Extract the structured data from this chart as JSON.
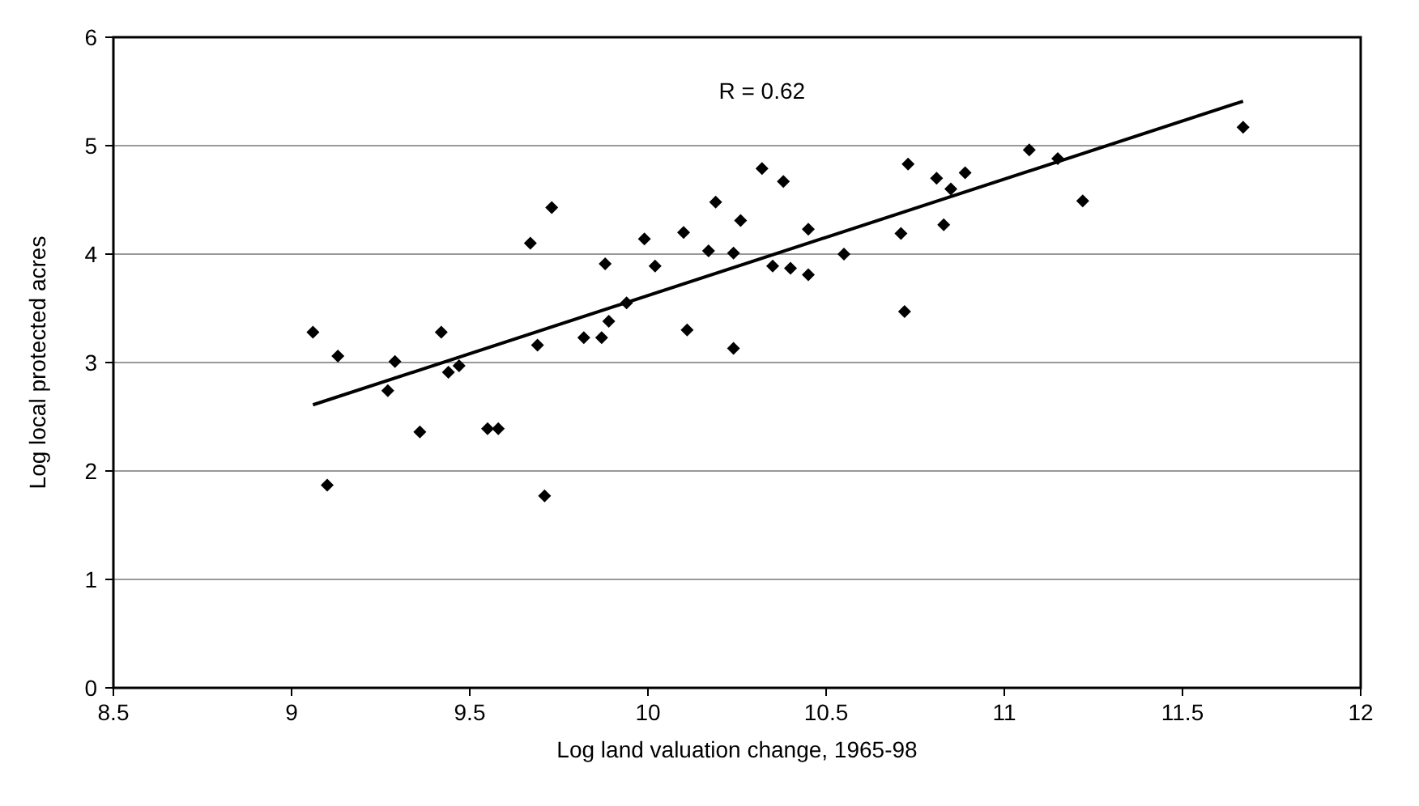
{
  "chart_data": {
    "type": "scatter",
    "xlabel": "Log land valuation change, 1965-98",
    "ylabel": "Log local protected acres",
    "xlim": [
      8.5,
      12
    ],
    "xticks": [
      8.5,
      9,
      9.5,
      10,
      10.5,
      11,
      11.5,
      12
    ],
    "ylim": [
      0,
      6
    ],
    "yticks": [
      0,
      1,
      2,
      3,
      4,
      5,
      6
    ],
    "grid": "y",
    "marker": "diamond",
    "annotations": [
      "R = 0.62"
    ],
    "series": [
      {
        "color": "#000000",
        "x": [
          9.06,
          9.1,
          9.13,
          9.27,
          9.29,
          9.36,
          9.42,
          9.44,
          9.47,
          9.55,
          9.58,
          9.67,
          9.69,
          9.71,
          9.73,
          9.82,
          9.87,
          9.88,
          9.89,
          9.94,
          9.99,
          10.02,
          10.1,
          10.11,
          10.17,
          10.19,
          10.24,
          10.26,
          10.24,
          10.32,
          10.35,
          10.38,
          10.4,
          10.45,
          10.45,
          10.55,
          10.71,
          10.73,
          10.72,
          10.81,
          10.83,
          10.85,
          10.89,
          11.07,
          11.15,
          11.22,
          11.67
        ],
        "values": [
          3.28,
          1.87,
          3.06,
          2.74,
          3.01,
          2.36,
          3.28,
          2.91,
          2.97,
          2.39,
          2.39,
          4.1,
          3.16,
          1.77,
          4.43,
          3.23,
          3.23,
          3.91,
          3.38,
          3.55,
          4.14,
          3.89,
          4.2,
          3.3,
          4.03,
          4.48,
          4.01,
          4.31,
          3.13,
          4.79,
          3.89,
          4.67,
          3.87,
          4.23,
          3.81,
          4.0,
          4.19,
          4.83,
          3.47,
          4.7,
          4.27,
          4.6,
          4.75,
          4.96,
          4.88,
          4.49,
          5.17
        ]
      },
      {
        "type": "line",
        "color": "#000000",
        "x": [
          9.06,
          11.67
        ],
        "values": [
          2.61,
          5.41
        ],
        "marker": "none",
        "line_style": "solid"
      }
    ]
  }
}
